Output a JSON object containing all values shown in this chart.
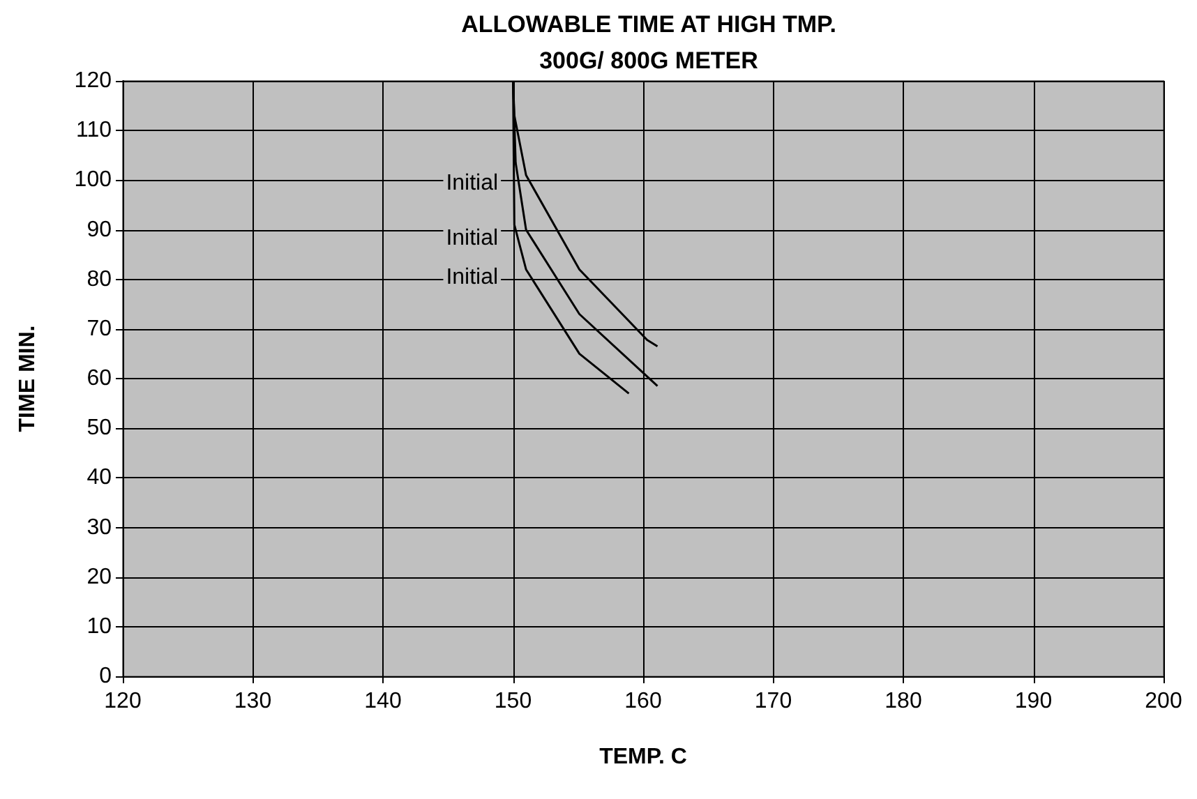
{
  "chart_data": {
    "type": "line",
    "title": "ALLOWABLE TIME AT HIGH TMP.",
    "subtitle": "300G/ 800G METER",
    "xlabel": "TEMP. C",
    "ylabel": "TIME MIN.",
    "series": [
      {
        "color": "#000000",
        "x": [
          150,
          150.1,
          151,
          155.1,
          160.3,
          161.1
        ],
        "values": [
          120,
          113,
          101,
          82,
          67.8,
          66.5
        ]
      },
      {
        "color": "#000000",
        "x": [
          150,
          150.2,
          151,
          155.1,
          161.1
        ],
        "values": [
          120,
          103.5,
          90,
          73,
          58.5
        ]
      },
      {
        "color": "#000000",
        "x": [
          150,
          150.1,
          151,
          155.1,
          158.9
        ],
        "values": [
          120,
          91,
          82,
          65,
          57
        ]
      }
    ],
    "annotations": [
      "Initial",
      "Initial",
      "Initial"
    ],
    "xlim": [
      120,
      200
    ],
    "xticks": [
      120,
      130,
      140,
      150,
      160,
      170,
      180,
      190,
      200
    ],
    "ylim": [
      0,
      120
    ],
    "yticks": [
      0,
      10,
      20,
      30,
      40,
      50,
      60,
      70,
      80,
      90,
      100,
      110,
      120
    ],
    "grid": true,
    "marker": "none",
    "line_style": "solid"
  }
}
